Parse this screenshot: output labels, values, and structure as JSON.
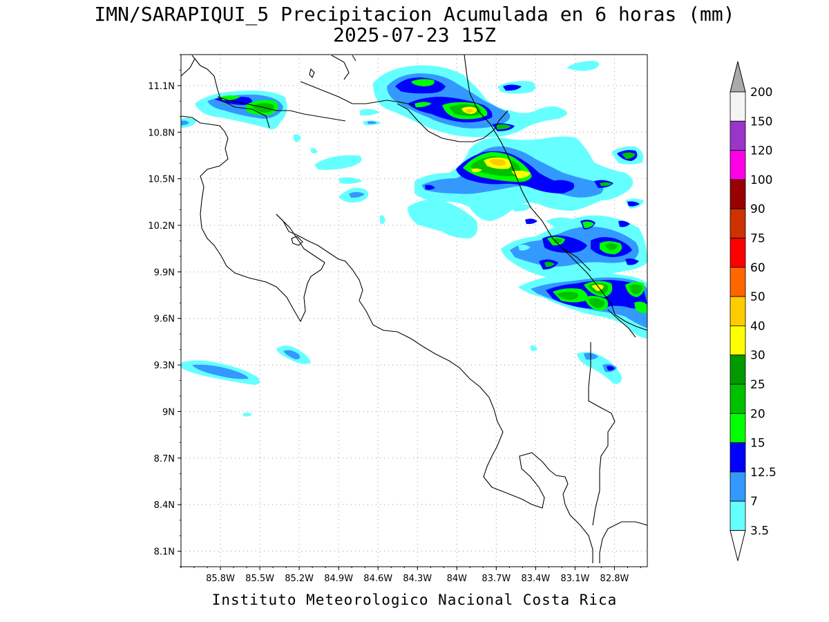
{
  "title": {
    "line1": "IMN/SARAPIQUI_5 Precipitacion Acumulada en 6 horas (mm)",
    "line2": "2025-07-23 15Z"
  },
  "footer": "Instituto Meteorologico Nacional Costa Rica",
  "map": {
    "lon_range": [
      -86.1,
      -82.55
    ],
    "lat_range": [
      8.0,
      11.3
    ],
    "lat_ticks": [
      "11.1N",
      "10.8N",
      "10.5N",
      "10.2N",
      "9.9N",
      "9.6N",
      "9.3N",
      "9N",
      "8.7N",
      "8.4N",
      "8.1N"
    ],
    "lat_values": [
      11.1,
      10.8,
      10.5,
      10.2,
      9.9,
      9.6,
      9.3,
      9.0,
      8.7,
      8.4,
      8.1
    ],
    "lon_ticks": [
      "85.8W",
      "85.5W",
      "85.2W",
      "84.9W",
      "84.6W",
      "84.3W",
      "84W",
      "83.7W",
      "83.4W",
      "83.1W",
      "82.8W"
    ],
    "lon_values": [
      -85.8,
      -85.5,
      -85.2,
      -84.9,
      -84.6,
      -84.3,
      -84.0,
      -83.7,
      -83.4,
      -83.1,
      -82.8
    ],
    "grid": "dotted"
  },
  "colorbar": {
    "levels": [
      "200",
      "150",
      "120",
      "100",
      "90",
      "75",
      "60",
      "50",
      "40",
      "30",
      "25",
      "20",
      "15",
      "12.5",
      "7",
      "3.5"
    ],
    "colors": [
      "#f4f4f4",
      "#9a35c9",
      "#ff00e6",
      "#990000",
      "#cc3300",
      "#ff0000",
      "#ff6600",
      "#ffcc00",
      "#ffff00",
      "#009900",
      "#00c000",
      "#00ff00",
      "#0000ff",
      "#3399ff",
      "#66ffff"
    ],
    "over_color": "#aaaaaa",
    "under_color": "#ffffff"
  },
  "precip_colors": {
    "c35": "#66ffff",
    "c7": "#3399ff",
    "c125": "#0000ff",
    "c15": "#00ff00",
    "c20": "#00c000",
    "c25": "#009900",
    "c30": "#ffff00",
    "c40": "#ffcc00"
  }
}
